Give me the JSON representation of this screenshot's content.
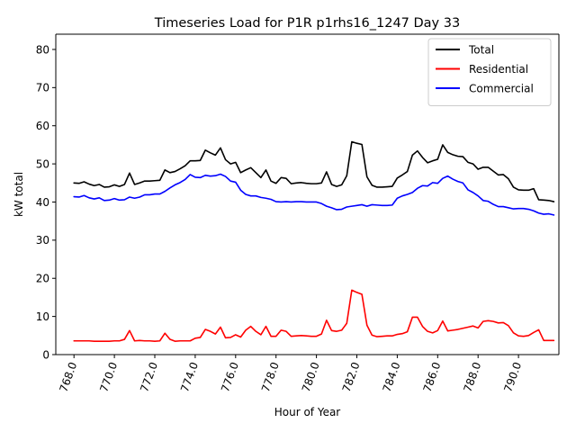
{
  "chart_data": {
    "type": "line",
    "title": "Timeseries Load for P1R p1rhs16_1247  Day 33",
    "xlabel": "Hour of Year",
    "ylabel": "kW total",
    "xlim": [
      767.1,
      792.0
    ],
    "ylim": [
      0,
      84
    ],
    "xticks": [
      768.0,
      770.0,
      772.0,
      774.0,
      776.0,
      778.0,
      780.0,
      782.0,
      784.0,
      786.0,
      788.0,
      790.0
    ],
    "xtick_labels": [
      "768.0",
      "770.0",
      "772.0",
      "774.0",
      "776.0",
      "778.0",
      "780.0",
      "782.0",
      "784.0",
      "786.0",
      "788.0",
      "790.0"
    ],
    "yticks": [
      0,
      10,
      20,
      30,
      40,
      50,
      60,
      70,
      80
    ],
    "ytick_labels": [
      "0",
      "10",
      "20",
      "30",
      "40",
      "50",
      "60",
      "70",
      "80"
    ],
    "legend_position": "top-right",
    "x": [
      768.0,
      768.25,
      768.5,
      768.75,
      769.0,
      769.25,
      769.5,
      769.75,
      770.0,
      770.25,
      770.5,
      770.75,
      771.0,
      771.25,
      771.5,
      771.75,
      772.0,
      772.25,
      772.5,
      772.75,
      773.0,
      773.25,
      773.5,
      773.75,
      774.0,
      774.25,
      774.5,
      774.75,
      775.0,
      775.25,
      775.5,
      775.75,
      776.0,
      776.25,
      776.5,
      776.75,
      777.0,
      777.25,
      777.5,
      777.75,
      778.0,
      778.25,
      778.5,
      778.75,
      779.0,
      779.25,
      779.5,
      779.75,
      780.0,
      780.25,
      780.5,
      780.75,
      781.0,
      781.25,
      781.5,
      781.75,
      782.0,
      782.25,
      782.5,
      782.75,
      783.0,
      783.25,
      783.5,
      783.75,
      784.0,
      784.25,
      784.5,
      784.75,
      785.0,
      785.25,
      785.5,
      785.75,
      786.0,
      786.25,
      786.5,
      786.75,
      787.0,
      787.25,
      787.5,
      787.75,
      788.0,
      788.25,
      788.5,
      788.75,
      789.0,
      789.25,
      789.5,
      789.75,
      790.0,
      790.25,
      790.5,
      790.75,
      791.0,
      791.25,
      791.5,
      791.75
    ],
    "series": [
      {
        "name": "Total",
        "color": "#000000",
        "values": [
          45.0,
          44.9,
          45.3,
          44.7,
          44.3,
          44.6,
          43.9,
          44.0,
          44.5,
          44.1,
          44.6,
          47.6,
          44.6,
          45.0,
          45.5,
          45.5,
          45.6,
          45.7,
          48.4,
          47.7,
          48.0,
          48.7,
          49.5,
          50.8,
          50.8,
          50.9,
          53.6,
          52.9,
          52.3,
          54.2,
          51.1,
          50.0,
          50.4,
          47.7,
          48.4,
          49.0,
          47.7,
          46.4,
          48.4,
          45.5,
          44.9,
          46.4,
          46.2,
          44.8,
          45.0,
          45.1,
          44.9,
          44.8,
          44.8,
          45.0,
          47.9,
          44.6,
          44.1,
          44.5,
          46.9,
          55.8,
          55.4,
          55.1,
          46.6,
          44.4,
          43.9,
          43.9,
          44.0,
          44.1,
          46.3,
          47.1,
          48.0,
          52.3,
          53.4,
          51.7,
          50.3,
          50.8,
          51.2,
          55.0,
          53.0,
          52.4,
          52.0,
          51.9,
          50.4,
          50.0,
          48.6,
          49.1,
          49.1,
          48.1,
          47.1,
          47.2,
          46.1,
          43.9,
          43.2,
          43.1,
          43.1,
          43.5,
          40.6,
          40.5,
          40.4,
          40.1
        ]
      },
      {
        "name": "Residential",
        "color": "#ff0000",
        "values": [
          3.6,
          3.6,
          3.6,
          3.6,
          3.5,
          3.5,
          3.5,
          3.5,
          3.6,
          3.6,
          4.0,
          6.3,
          3.6,
          3.7,
          3.6,
          3.6,
          3.5,
          3.6,
          5.6,
          4.0,
          3.5,
          3.6,
          3.6,
          3.6,
          4.3,
          4.5,
          6.6,
          6.1,
          5.4,
          7.2,
          4.4,
          4.5,
          5.2,
          4.6,
          6.4,
          7.4,
          6.1,
          5.2,
          7.4,
          4.8,
          4.8,
          6.4,
          6.1,
          4.8,
          4.9,
          5.0,
          4.9,
          4.8,
          4.8,
          5.4,
          9.0,
          6.3,
          6.1,
          6.4,
          8.2,
          16.9,
          16.3,
          15.8,
          7.7,
          5.1,
          4.7,
          4.8,
          4.9,
          4.9,
          5.3,
          5.5,
          6.0,
          9.8,
          9.8,
          7.4,
          6.1,
          5.7,
          6.3,
          8.8,
          6.2,
          6.4,
          6.6,
          6.9,
          7.2,
          7.5,
          7.0,
          8.7,
          8.9,
          8.7,
          8.3,
          8.4,
          7.6,
          5.7,
          4.9,
          4.8,
          5.0,
          5.8,
          6.5,
          3.7,
          3.7,
          3.7
        ]
      },
      {
        "name": "Commercial",
        "color": "#0000ff",
        "values": [
          41.4,
          41.3,
          41.7,
          41.1,
          40.8,
          41.1,
          40.4,
          40.5,
          40.9,
          40.5,
          40.6,
          41.3,
          41.0,
          41.3,
          41.9,
          41.9,
          42.1,
          42.1,
          42.8,
          43.7,
          44.5,
          45.1,
          45.9,
          47.2,
          46.5,
          46.4,
          47.0,
          46.8,
          46.9,
          47.3,
          46.7,
          45.5,
          45.2,
          43.1,
          42.0,
          41.6,
          41.6,
          41.2,
          41.0,
          40.7,
          40.1,
          40.0,
          40.1,
          40.0,
          40.1,
          40.1,
          40.0,
          40.0,
          40.0,
          39.6,
          38.9,
          38.5,
          38.0,
          38.1,
          38.7,
          38.9,
          39.1,
          39.3,
          38.9,
          39.3,
          39.2,
          39.1,
          39.1,
          39.2,
          41.0,
          41.6,
          42.0,
          42.5,
          43.6,
          44.3,
          44.2,
          45.1,
          44.9,
          46.2,
          46.8,
          46.0,
          45.4,
          45.0,
          43.2,
          42.5,
          41.6,
          40.4,
          40.2,
          39.4,
          38.8,
          38.8,
          38.5,
          38.2,
          38.3,
          38.3,
          38.1,
          37.7,
          37.1,
          36.8,
          36.9,
          36.6
        ]
      }
    ]
  }
}
